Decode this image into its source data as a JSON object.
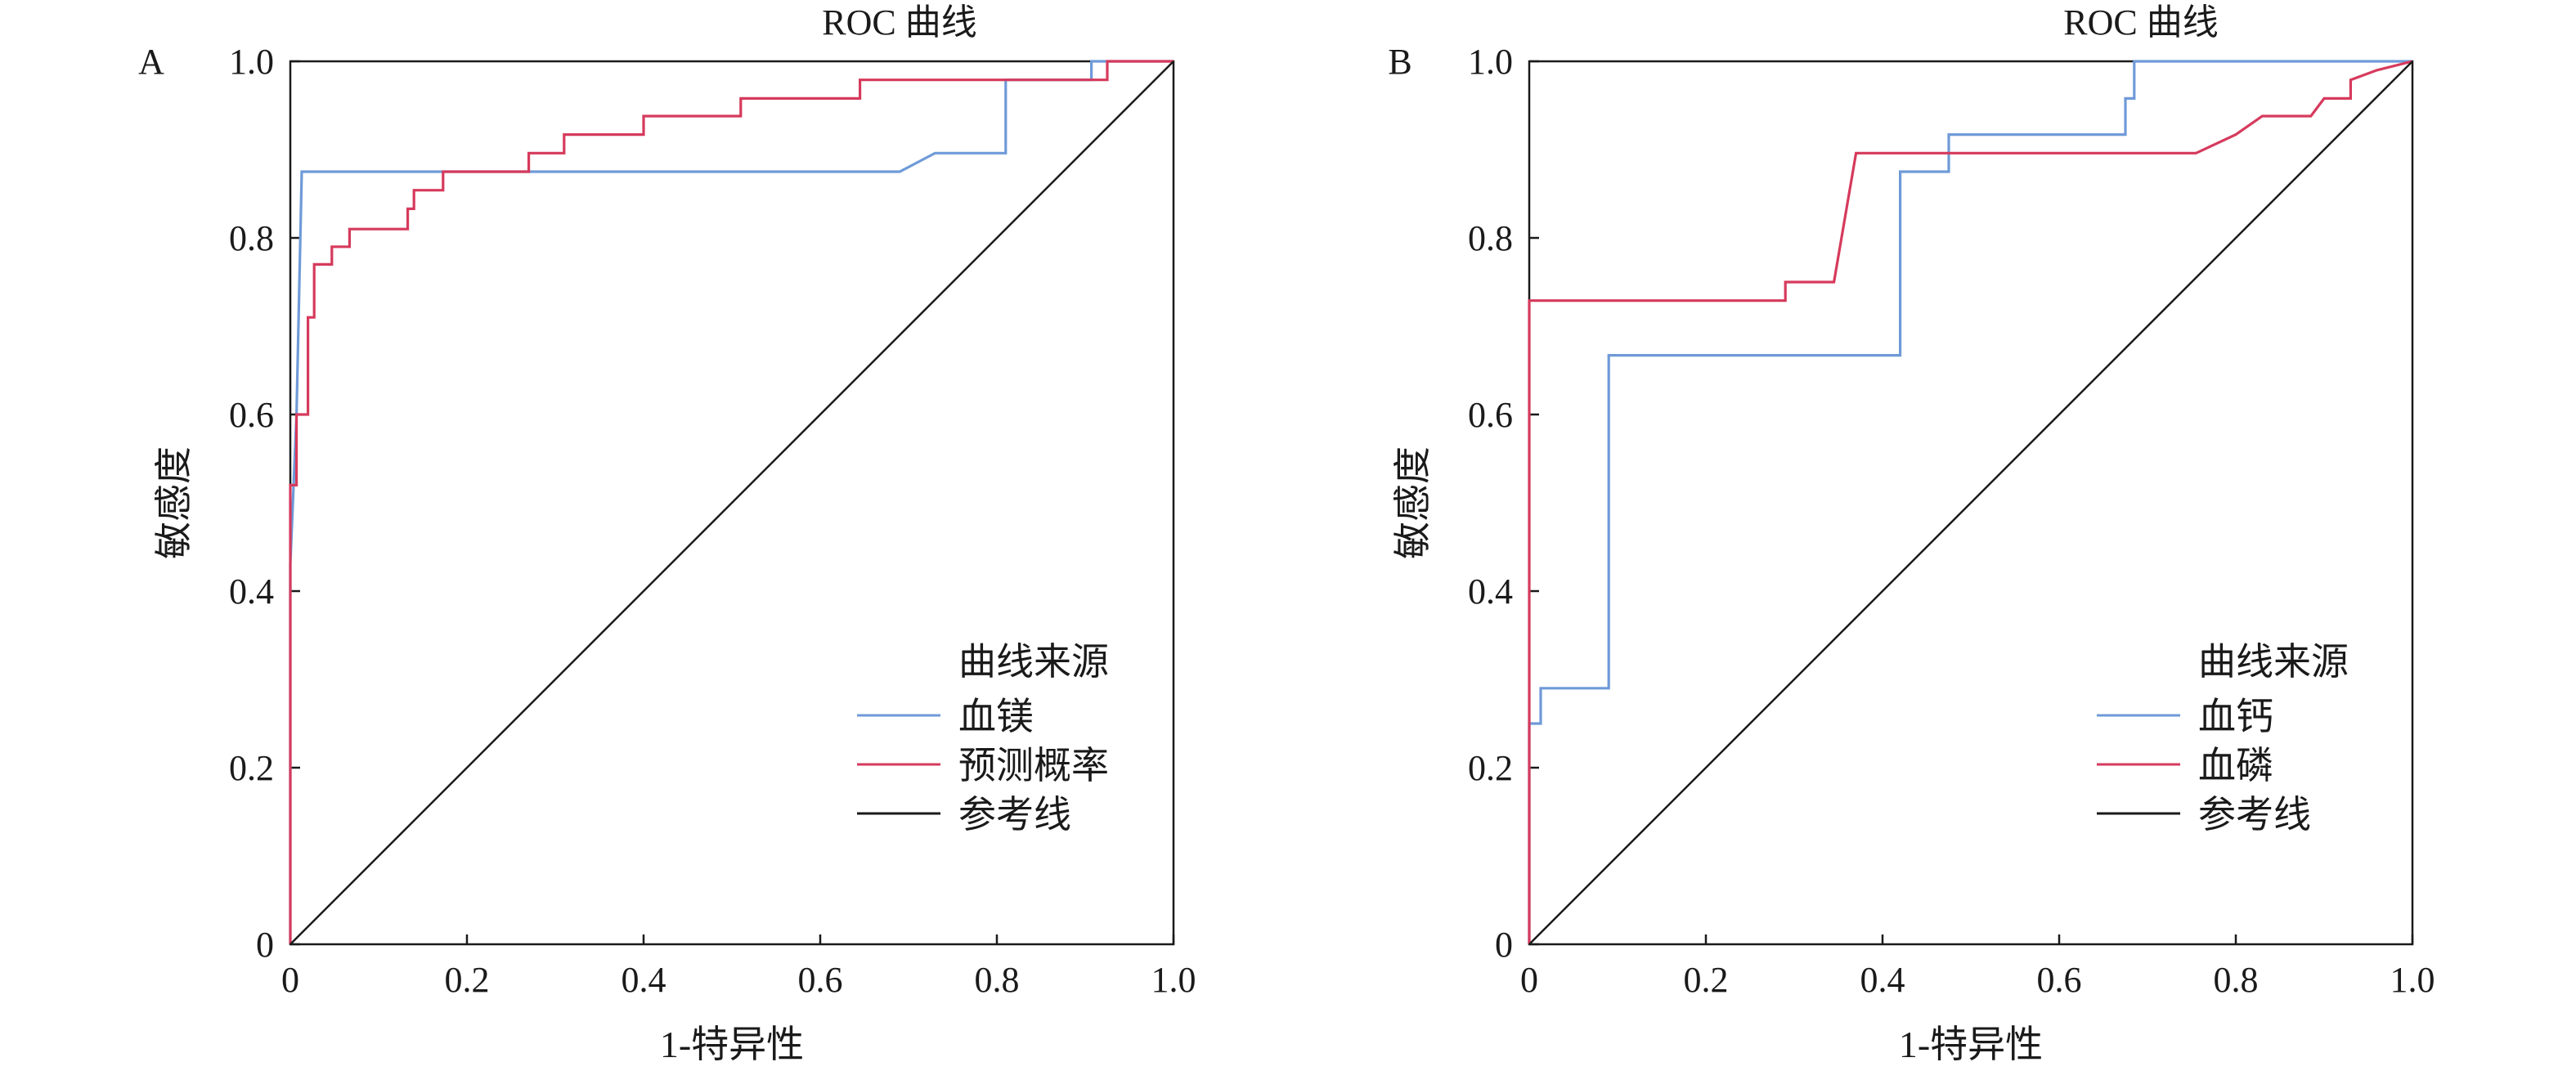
{
  "colors": {
    "series_a1": "#6f9ad8",
    "series_a2": "#d63a5c",
    "series_b1": "#6f9ad8",
    "series_b2": "#d63a5c",
    "reference": "#1a1a1a"
  },
  "chart_data": [
    {
      "panel": "A",
      "type": "line",
      "title": "ROC 曲线",
      "xlabel": "1-特异性",
      "ylabel": "敏感度",
      "xlim": [
        0,
        1
      ],
      "ylim": [
        0,
        1
      ],
      "xticks": [
        "0",
        "0.2",
        "0.4",
        "0.6",
        "0.8",
        "1.0"
      ],
      "yticks": [
        "0",
        "0.2",
        "0.4",
        "0.6",
        "0.8",
        "1.0"
      ],
      "grid": false,
      "legend_title": "曲线来源",
      "legend_position": "bottom-right",
      "series": [
        {
          "name": "血镁",
          "color": "#6f9ad8",
          "points": [
            [
              0,
              0
            ],
            [
              0,
              0.43
            ],
            [
              0.007,
              0.6
            ],
            [
              0.013,
              0.875
            ],
            [
              0.69,
              0.875
            ],
            [
              0.73,
              0.896
            ],
            [
              0.81,
              0.896
            ],
            [
              0.81,
              0.979
            ],
            [
              0.907,
              0.979
            ],
            [
              0.907,
              1.0
            ],
            [
              1.0,
              1.0
            ]
          ]
        },
        {
          "name": "预测概率",
          "color": "#d63a5c",
          "points": [
            [
              0,
              0
            ],
            [
              0,
              0.52
            ],
            [
              0.007,
              0.52
            ],
            [
              0.007,
              0.6
            ],
            [
              0.02,
              0.6
            ],
            [
              0.02,
              0.71
            ],
            [
              0.027,
              0.71
            ],
            [
              0.027,
              0.77
            ],
            [
              0.047,
              0.77
            ],
            [
              0.047,
              0.79
            ],
            [
              0.067,
              0.79
            ],
            [
              0.067,
              0.81
            ],
            [
              0.133,
              0.81
            ],
            [
              0.133,
              0.833
            ],
            [
              0.14,
              0.833
            ],
            [
              0.14,
              0.854
            ],
            [
              0.173,
              0.854
            ],
            [
              0.173,
              0.875
            ],
            [
              0.27,
              0.875
            ],
            [
              0.27,
              0.896
            ],
            [
              0.31,
              0.896
            ],
            [
              0.31,
              0.917
            ],
            [
              0.4,
              0.917
            ],
            [
              0.4,
              0.938
            ],
            [
              0.51,
              0.938
            ],
            [
              0.51,
              0.958
            ],
            [
              0.645,
              0.958
            ],
            [
              0.645,
              0.979
            ],
            [
              0.925,
              0.979
            ],
            [
              0.925,
              1.0
            ],
            [
              1.0,
              1.0
            ]
          ]
        },
        {
          "name": "参考线",
          "color": "#1a1a1a",
          "points": [
            [
              0,
              0
            ],
            [
              1,
              1
            ]
          ]
        }
      ]
    },
    {
      "panel": "B",
      "type": "line",
      "title": "ROC 曲线",
      "xlabel": "1-特异性",
      "ylabel": "敏感度",
      "xlim": [
        0,
        1
      ],
      "ylim": [
        0,
        1
      ],
      "xticks": [
        "0",
        "0.2",
        "0.4",
        "0.6",
        "0.8",
        "1.0"
      ],
      "yticks": [
        "0",
        "0.2",
        "0.4",
        "0.6",
        "0.8",
        "1.0"
      ],
      "grid": false,
      "legend_title": "曲线来源",
      "legend_position": "bottom-right",
      "series": [
        {
          "name": "血钙",
          "color": "#6f9ad8",
          "points": [
            [
              0,
              0
            ],
            [
              0,
              0.25
            ],
            [
              0.013,
              0.25
            ],
            [
              0.013,
              0.29
            ],
            [
              0.09,
              0.29
            ],
            [
              0.09,
              0.667
            ],
            [
              0.42,
              0.667
            ],
            [
              0.42,
              0.875
            ],
            [
              0.475,
              0.875
            ],
            [
              0.475,
              0.917
            ],
            [
              0.675,
              0.917
            ],
            [
              0.675,
              0.958
            ],
            [
              0.685,
              0.958
            ],
            [
              0.685,
              1.0
            ],
            [
              1.0,
              1.0
            ]
          ]
        },
        {
          "name": "血磷",
          "color": "#d63a5c",
          "points": [
            [
              0,
              0
            ],
            [
              0,
              0.729
            ],
            [
              0.29,
              0.729
            ],
            [
              0.29,
              0.75
            ],
            [
              0.345,
              0.75
            ],
            [
              0.37,
              0.896
            ],
            [
              0.755,
              0.896
            ],
            [
              0.8,
              0.917
            ],
            [
              0.83,
              0.938
            ],
            [
              0.885,
              0.938
            ],
            [
              0.9,
              0.958
            ],
            [
              0.93,
              0.958
            ],
            [
              0.93,
              0.979
            ],
            [
              0.96,
              0.99
            ],
            [
              1.0,
              1.0
            ]
          ]
        },
        {
          "name": "参考线",
          "color": "#1a1a1a",
          "points": [
            [
              0,
              0
            ],
            [
              1,
              1
            ]
          ]
        }
      ]
    }
  ]
}
